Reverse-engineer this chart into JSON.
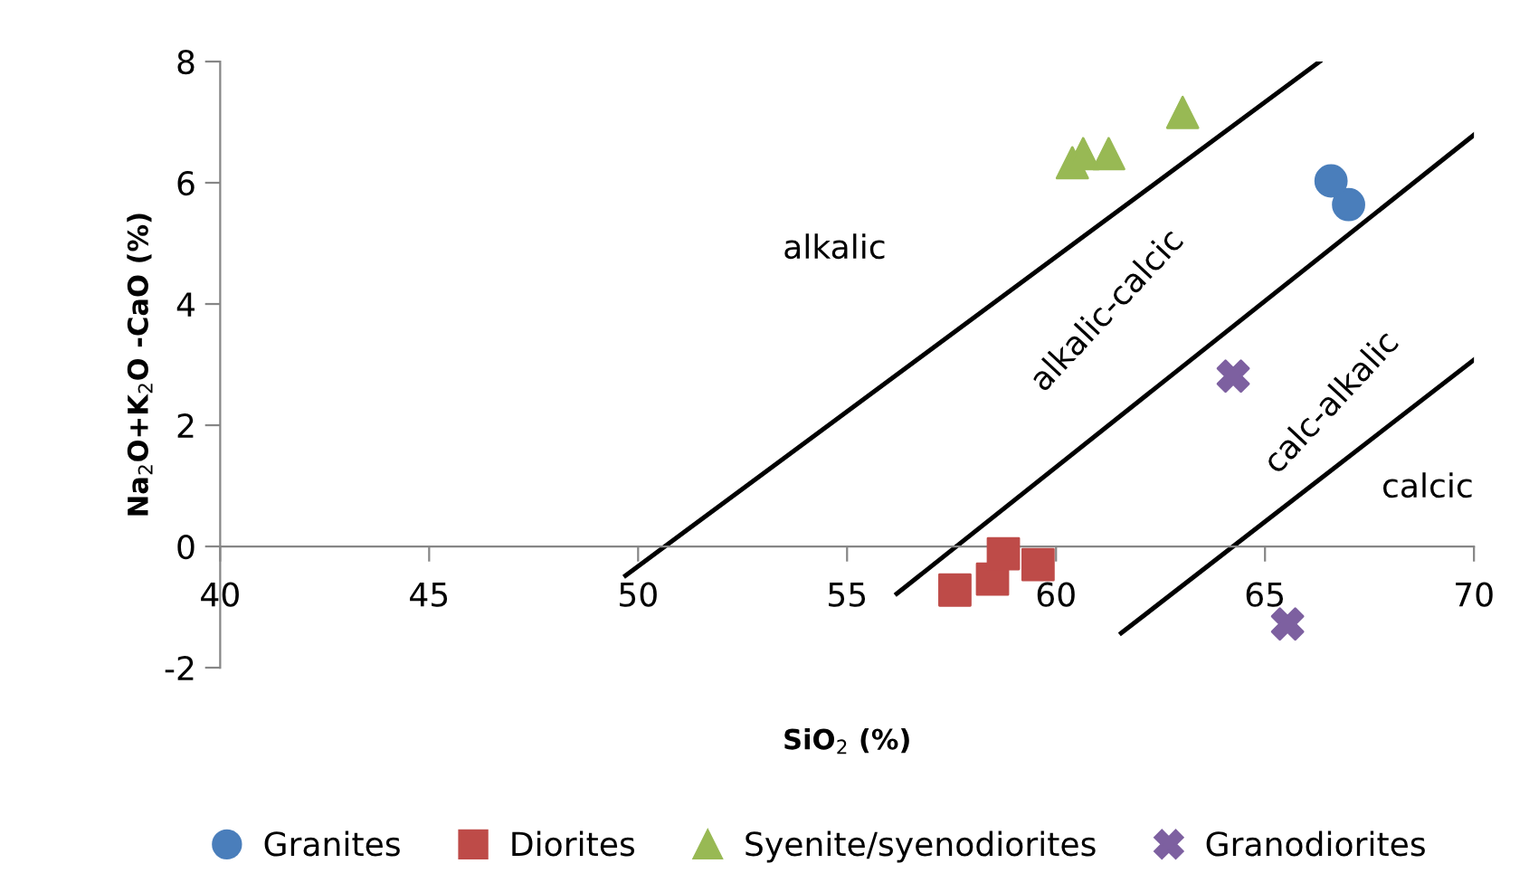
{
  "chart_data": {
    "type": "scatter",
    "xlabel": "SiO$_{2}$ (%)",
    "ylabel": "Na$_{2}$O+K$_{2}$O -CaO (%)",
    "xlim": [
      40,
      70
    ],
    "xticks": [
      40,
      45,
      50,
      55,
      60,
      65,
      70
    ],
    "ylim": [
      -2,
      8
    ],
    "yticks": [
      -2,
      0,
      2,
      4,
      6,
      8
    ],
    "grid": false,
    "legend": "bottom",
    "series": [
      {
        "name": "Granites",
        "color": "#4a7ebb",
        "marker": "circle",
        "x": [
          66.58,
          67.0
        ],
        "values": [
          6.03,
          5.64
        ]
      },
      {
        "name": "Diorites",
        "color": "#be4b48",
        "marker": "square",
        "x": [
          57.58,
          58.48,
          58.74,
          59.57
        ],
        "values": [
          -0.72,
          -0.54,
          -0.12,
          -0.3
        ]
      },
      {
        "name": "Syenite/syenodiorites",
        "color": "#98b954",
        "marker": "triangle",
        "x": [
          60.39,
          60.65,
          61.26,
          63.03
        ],
        "values": [
          6.33,
          6.48,
          6.48,
          7.16
        ]
      },
      {
        "name": "Granodiorites",
        "color": "#7d60a0",
        "marker": "cross",
        "x": [
          64.24,
          65.54
        ],
        "values": [
          2.81,
          -1.28
        ]
      },
      {
        "type": "line",
        "color": "#000000",
        "marker": "none",
        "line_style": "solid",
        "x": [
          49.7,
          66.31
        ],
        "values": [
          -0.48,
          8
        ]
      },
      {
        "type": "line",
        "color": "#000000",
        "marker": "none",
        "line_style": "solid",
        "x": [
          56.19,
          70
        ],
        "values": [
          -0.78,
          6.79
        ]
      },
      {
        "type": "line",
        "color": "#000000",
        "marker": "none",
        "line_style": "solid",
        "x": [
          61.56,
          70
        ],
        "values": [
          -1.43,
          3.08
        ]
      }
    ],
    "annotations": [
      "alkalic",
      "alkalic-calcic",
      "calc-alkalic",
      "calcic"
    ]
  }
}
